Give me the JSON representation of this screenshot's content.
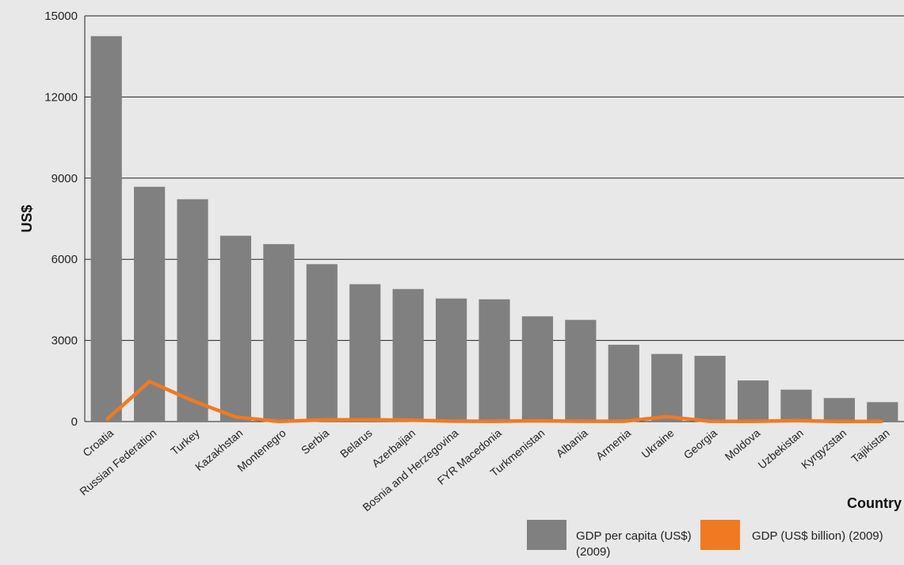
{
  "chart_data": {
    "type": "bar",
    "title": "",
    "xlabel": "Country",
    "ylabel": "US$",
    "ylim": [
      0,
      15000
    ],
    "yticks": [
      0,
      3000,
      6000,
      9000,
      12000,
      15000
    ],
    "grid": true,
    "legend_position": "bottom-right",
    "categories": [
      "Croatia",
      "Russian Federation",
      "Turkey",
      "Kazakhstan",
      "Montenegro",
      "Serbia",
      "Belarus",
      "Azerbaijan",
      "Bosnia and Herzegovina",
      "FYR Macedonia",
      "Turkmenistan",
      "Albania",
      "Armenia",
      "Ukraine",
      "Georgia",
      "Moldova",
      "Uzbekistan",
      "Kyrgyzstan",
      "Tajikistan"
    ],
    "series": [
      {
        "name": "GDP per capita (US$) (2009)",
        "type": "bar",
        "color": "#808080",
        "values": [
          14250,
          8680,
          8220,
          6870,
          6560,
          5820,
          5080,
          4900,
          4550,
          4520,
          3890,
          3760,
          2840,
          2500,
          2430,
          1520,
          1180,
          870,
          720
        ]
      },
      {
        "name": "GDP (US$ billion) (2009)",
        "type": "line",
        "color": "#f07a22",
        "values": [
          63,
          1480,
          770,
          170,
          4,
          61,
          70,
          55,
          20,
          9,
          30,
          12,
          10,
          180,
          10,
          6,
          35,
          5,
          6
        ]
      }
    ]
  },
  "legend": {
    "bar_label": "GDP per capita (US$)  (2009)",
    "line_label": "GDP (US$ billion) (2009)"
  }
}
